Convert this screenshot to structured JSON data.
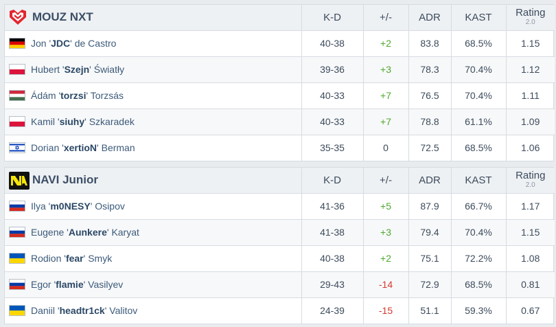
{
  "columns": {
    "kd": "K-D",
    "plus_minus": "+/-",
    "adr": "ADR",
    "kast": "KAST",
    "rating": "Rating",
    "rating_version": "2.0"
  },
  "teams": [
    {
      "name": "MOUZ NXT",
      "logo": "mouz-logo-icon",
      "players": [
        {
          "first": "Jon",
          "nick": "JDC",
          "last": "de Castro",
          "flag": "germany-flag-icon",
          "kd": "40-38",
          "pm": "+2",
          "adr": "83.8",
          "kast": "68.5%",
          "rating": "1.15"
        },
        {
          "first": "Hubert",
          "nick": "Szejn",
          "last": "Światły",
          "flag": "poland-flag-icon",
          "kd": "39-36",
          "pm": "+3",
          "adr": "78.3",
          "kast": "70.4%",
          "rating": "1.12"
        },
        {
          "first": "Ádám",
          "nick": "torzsi",
          "last": "Torzsás",
          "flag": "hungary-flag-icon",
          "kd": "40-33",
          "pm": "+7",
          "adr": "76.5",
          "kast": "70.4%",
          "rating": "1.11"
        },
        {
          "first": "Kamil",
          "nick": "siuhy",
          "last": "Szkaradek",
          "flag": "poland-flag-icon",
          "kd": "40-33",
          "pm": "+7",
          "adr": "78.8",
          "kast": "61.1%",
          "rating": "1.09"
        },
        {
          "first": "Dorian",
          "nick": "xertioN",
          "last": "Berman",
          "flag": "israel-flag-icon",
          "kd": "35-35",
          "pm": "0",
          "adr": "72.5",
          "kast": "68.5%",
          "rating": "1.06"
        }
      ]
    },
    {
      "name": "NAVI Junior",
      "logo": "navi-logo-icon",
      "players": [
        {
          "first": "Ilya",
          "nick": "m0NESY",
          "last": "Osipov",
          "flag": "russia-flag-icon",
          "kd": "41-36",
          "pm": "+5",
          "adr": "87.9",
          "kast": "66.7%",
          "rating": "1.17"
        },
        {
          "first": "Eugene",
          "nick": "Aunkere",
          "last": "Karyat",
          "flag": "russia-flag-icon",
          "kd": "41-38",
          "pm": "+3",
          "adr": "79.4",
          "kast": "70.4%",
          "rating": "1.15"
        },
        {
          "first": "Rodion",
          "nick": "fear",
          "last": "Smyk",
          "flag": "ukraine-flag-icon",
          "kd": "40-38",
          "pm": "+2",
          "adr": "75.1",
          "kast": "72.2%",
          "rating": "1.08"
        },
        {
          "first": "Egor",
          "nick": "flamie",
          "last": "Vasilyev",
          "flag": "russia-flag-icon",
          "kd": "29-43",
          "pm": "-14",
          "adr": "72.9",
          "kast": "68.5%",
          "rating": "0.81"
        },
        {
          "first": "Daniil",
          "nick": "headtr1ck",
          "last": "Valitov",
          "flag": "ukraine-flag-icon",
          "kd": "24-39",
          "pm": "-15",
          "adr": "51.1",
          "kast": "59.3%",
          "rating": "0.67"
        }
      ]
    }
  ],
  "colors": {
    "positive": "#4ea82e",
    "negative": "#d53a2f",
    "header_bg": "#eef1f4",
    "mouz_red": "#e3262f",
    "navi_yellow": "#f5e50a"
  }
}
